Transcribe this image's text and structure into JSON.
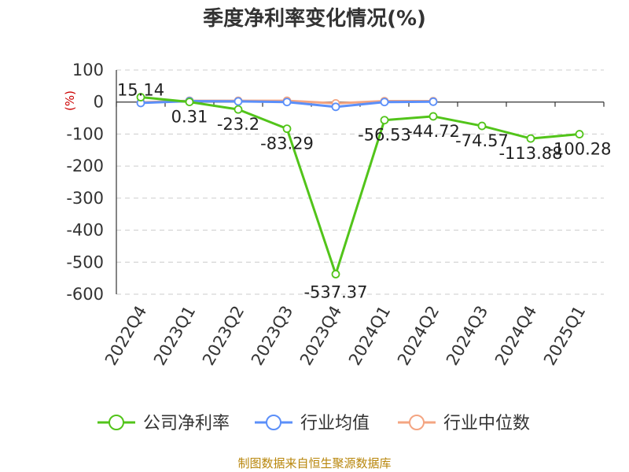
{
  "chart_data": {
    "type": "line",
    "title": "季度净利率变化情况(%)",
    "ylabel": "(%)",
    "xlabel": "",
    "categories": [
      "2022Q4",
      "2023Q1",
      "2023Q2",
      "2023Q3",
      "2023Q4",
      "2024Q1",
      "2024Q2",
      "2024Q3",
      "2024Q4",
      "2025Q1"
    ],
    "ylim": [
      -600,
      100
    ],
    "yticks": [
      100,
      0,
      -100,
      -200,
      -300,
      -400,
      -500,
      -600
    ],
    "grid": true,
    "legend_position": "bottom",
    "series": [
      {
        "name": "公司净利率",
        "color": "#52c41a",
        "values": [
          15.14,
          0.31,
          -23.2,
          -83.29,
          -537.37,
          -56.53,
          -44.72,
          -74.57,
          -113.88,
          -100.28
        ],
        "labels": [
          "15.14",
          "0.31",
          "-23.2",
          "-83.29",
          "-537.37",
          "-56.53",
          "-44.72",
          "-74.57",
          "-113.88",
          "-100.28"
        ]
      },
      {
        "name": "行业均值",
        "color": "#5b8ff9",
        "values": [
          -3,
          3,
          2,
          0,
          -15,
          0,
          1,
          null,
          null,
          null
        ]
      },
      {
        "name": "行业中位数",
        "color": "#f4a582",
        "values": [
          -1,
          4,
          4,
          4,
          -4,
          3,
          3,
          null,
          null,
          null
        ]
      }
    ]
  },
  "source": "制图数据来自恒生聚源数据库"
}
